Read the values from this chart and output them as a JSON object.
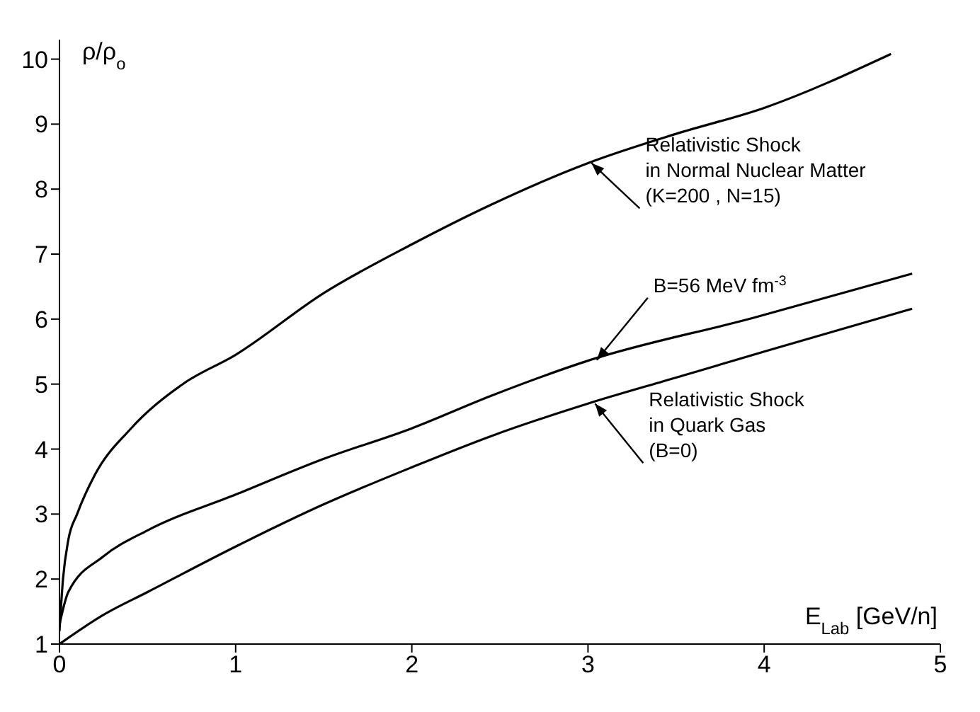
{
  "chart_data": {
    "type": "line",
    "xlabel": "E$_{Lab}$ [GeV/n]",
    "ylabel": "ρ/ρ$_{o}$",
    "xlim": [
      0,
      5
    ],
    "xticks": [
      0,
      1,
      2,
      3,
      4,
      5
    ],
    "ylim": [
      1,
      10.3
    ],
    "yticks": [
      1,
      2,
      3,
      4,
      5,
      6,
      7,
      8,
      9,
      10
    ],
    "grid": false,
    "legend": false,
    "marker": "none",
    "line_style": "solid",
    "series": [
      {
        "color": "#000000",
        "x": [
          0,
          0.02,
          0.05,
          0.1,
          0.2,
          0.4,
          0.7,
          1,
          1.5,
          2,
          2.45,
          3,
          3.5,
          4,
          4.72
        ],
        "values": [
          1.2,
          2.0,
          2.6,
          3.0,
          3.6,
          4.3,
          5.0,
          5.45,
          6.4,
          7.15,
          7.76,
          8.4,
          8.85,
          9.25,
          10.08
        ]
      },
      {
        "color": "#000000",
        "x": [
          0,
          0.05,
          0.25,
          0.5,
          1,
          1.5,
          2,
          2.45,
          3,
          3.94,
          4.84
        ],
        "values": [
          1.3,
          1.8,
          2.35,
          2.75,
          3.3,
          3.85,
          4.32,
          4.82,
          5.36,
          6.02,
          6.7
        ]
      },
      {
        "color": "#000000",
        "x": [
          0,
          0.25,
          0.5,
          1,
          1.5,
          2,
          2.45,
          3,
          3.5,
          4,
          4.84
        ],
        "values": [
          1.0,
          1.45,
          1.8,
          2.5,
          3.15,
          3.72,
          4.2,
          4.7,
          5.1,
          5.5,
          6.16
        ]
      }
    ],
    "annotations": [
      {
        "text": "Relativistic Shock\nin Normal Nuclear Matter\n(K=200 , N=15)",
        "x": 3.02,
        "y": 8.4
      },
      {
        "text": "B=56 MeV fm$^{-3}$",
        "x": 3.05,
        "y": 5.37
      },
      {
        "text": "Relativistic Shock\nin Quark Gas\n(B=0)",
        "x": 3.04,
        "y": 4.7
      }
    ]
  }
}
